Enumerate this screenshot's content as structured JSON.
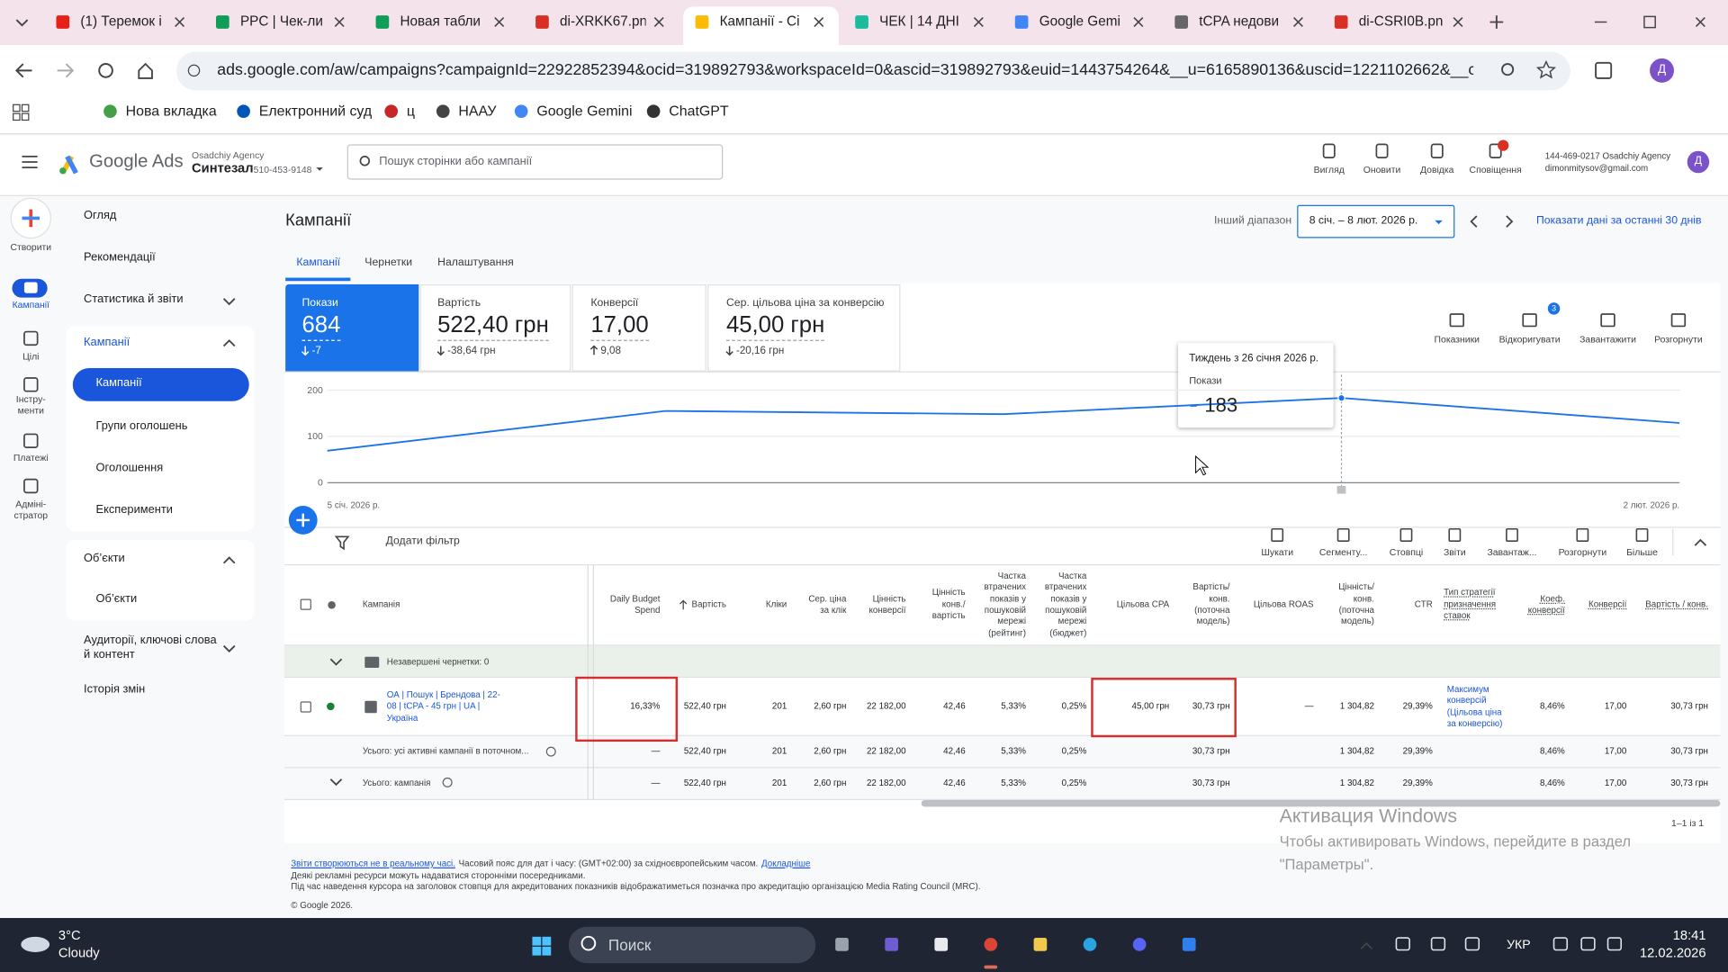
{
  "browser": {
    "tabs": [
      "(1) Теремок і",
      "PPC | Чек-ли",
      "Новая табли",
      "di-XRKK67.pn",
      "Кампанії - Сі",
      "ЧЕК | 14 ДНІ",
      "Google Gemi",
      "tCPA недови",
      "di-CSRI0B.pn"
    ],
    "url": "ads.google.com/aw/campaigns?campaignId=22922852394&ocid=319892793&workspaceId=0&ascid=319892793&euid=1443754264&__u=6165890136&uscid=1221102662&__c=2...",
    "profile": "Д",
    "bookmarks": [
      "Нова вкладка",
      "Електронний суд",
      "ц",
      "НААУ",
      "Google Gemini",
      "ChatGPT"
    ]
  },
  "header": {
    "product": "Google Ads",
    "manager": "Osadchiy Agency",
    "account": "Синтезал",
    "account_id": "510-453-9148",
    "search_placeholder": "Пошук сторінки або кампанії",
    "tools": [
      "Вигляд",
      "Оновити",
      "Довідка",
      "Сповіщення"
    ],
    "user_line": "144-469-0217 Osadchiy Agency",
    "email": "dimonmitysov@gmail.com",
    "avatar": "Д"
  },
  "rail": [
    "Створити",
    "Кампанії",
    "Цілі",
    "Інстру-\nменти",
    "Платежі",
    "Адміні-\nстратор"
  ],
  "nav": [
    "Огляд",
    "Рекомендації",
    "Статистика й звіти",
    "Кампанії",
    "Кампанії",
    "Групи оголошень",
    "Оголошення",
    "Експерименти",
    "Об’єкти",
    "Об’єкти",
    "Аудиторії, ключові слова й контент",
    "Історія змін"
  ],
  "page": {
    "title": "Кампанії",
    "range_label": "Інший діапазон",
    "range": "8 січ. – 8 лют. 2026 р.",
    "last_30": "Показати дані за останні 30 днів",
    "tabs": [
      "Кампанії",
      "Чернетки",
      "Налаштування"
    ]
  },
  "metrics": [
    {
      "label": "Покази",
      "value": "684",
      "delta": "-7"
    },
    {
      "label": "Вартість",
      "value": "522,40 грн",
      "delta": "-38,64 грн"
    },
    {
      "label": "Конверсії",
      "value": "17,00",
      "delta": "9,08"
    },
    {
      "label": "Сер. цільова ціна за конверсію",
      "value": "45,00 грн",
      "delta": "-20,16 грн"
    }
  ],
  "chart_tools": {
    "items": [
      "Показники",
      "Відкоригувати",
      "Завантажити",
      "Розгорнути"
    ],
    "badge": "3"
  },
  "chart_data": {
    "type": "line",
    "categories": [
      "5 січ. 2026 р.",
      null,
      null,
      null,
      "2 лют. 2026 р."
    ],
    "values": [
      69,
      155,
      148,
      183,
      129
    ],
    "ylim": [
      0,
      200
    ],
    "yticks": [
      0,
      100,
      200
    ],
    "color": "#1a73e8",
    "grid": true,
    "tooltip_title": "Тиждень з 26 січня 2026 р."
  },
  "filter": {
    "label": "Додати фільтр",
    "tools": [
      "Шукати",
      "Сегменту...",
      "Стовпці",
      "Звіти",
      "Завантаж...",
      "Розгорнути",
      "Більше"
    ]
  },
  "table": {
    "columns": [
      "Кампанія",
      "Daily Budget Spend",
      "Вартість",
      "Кліки",
      "Сер. ціна за клік",
      "Цінність конверсії",
      "Цінність конв./ вартість",
      "Частка втрачених показів у пошуковій мережі (рейтинг)",
      "Частка втрачених показів у пошуковій мережі (бюджет)",
      "Цільова CPA",
      "Вартість/ конв. (поточна модель)",
      "Цільова ROAS",
      "Цінність/ конв. (поточна модель)",
      "CTR",
      "Тип стратегії призначення ставок",
      "Коеф. конверсії",
      "Конверсії",
      "Вартість / конв."
    ],
    "draft_row": "Незавершені чернетки: 0",
    "rows": [
      [
        "ОА | Пошук | Брендова | 22-08 | tCPA - 45 грн | UA | Україна",
        "16,33%",
        "522,40 грн",
        "201",
        "2,60 грн",
        "22 182,00",
        "42,46",
        "5,33%",
        "0,25%",
        "45,00 грн",
        "30,73 грн",
        "—",
        "1 304,82",
        "29,39%",
        "Максимум конверсій (Цільова ціна за конверсію)",
        "8,46%",
        "17,00",
        "30,73 грн"
      ],
      [
        "Усього: усі активні кампанії в поточном...",
        "—",
        "522,40 грн",
        "201",
        "2,60 грн",
        "22 182,00",
        "42,46",
        "5,33%",
        "0,25%",
        null,
        "30,73 грн",
        null,
        "1 304,82",
        "29,39%",
        null,
        "8,46%",
        "17,00",
        "30,73 грн"
      ],
      [
        "Усього: кампанія",
        "—",
        "522,40 грн",
        "201",
        "2,60 грн",
        "22 182,00",
        "42,46",
        "5,33%",
        "0,25%",
        null,
        "30,73 грн",
        null,
        "1 304,82",
        "29,39%",
        null,
        "8,46%",
        "17,00",
        "30,73 грн"
      ]
    ],
    "pagination": "1–1 із 1"
  },
  "footer": {
    "realtime_link": "Звіти створюються не в реальному часі.",
    "timezone": "Часовий пояс для дат і часу: (GMT+02:00) за східноєвропейським часом.",
    "more_link": "Докладніше",
    "line2": "Деякі рекламні ресурси можуть надаватися сторонніми посередниками.",
    "line3": "Під час наведення курсора на заголовок стовпця для акредитованих показників відображатиметься позначка про акредитацію організацією Media Rating Council (MRC).",
    "copyright": "© Google 2026."
  },
  "watermark": {
    "title": "Активация Windows",
    "text": "Чтобы активировать Windows, перейдите в раздел \"Параметры\"."
  },
  "taskbar": {
    "temperature": "3°C",
    "weather": "Cloudy",
    "search": "Поиск",
    "language": "УКР",
    "time": "18:41",
    "date": "12.02.2026"
  }
}
